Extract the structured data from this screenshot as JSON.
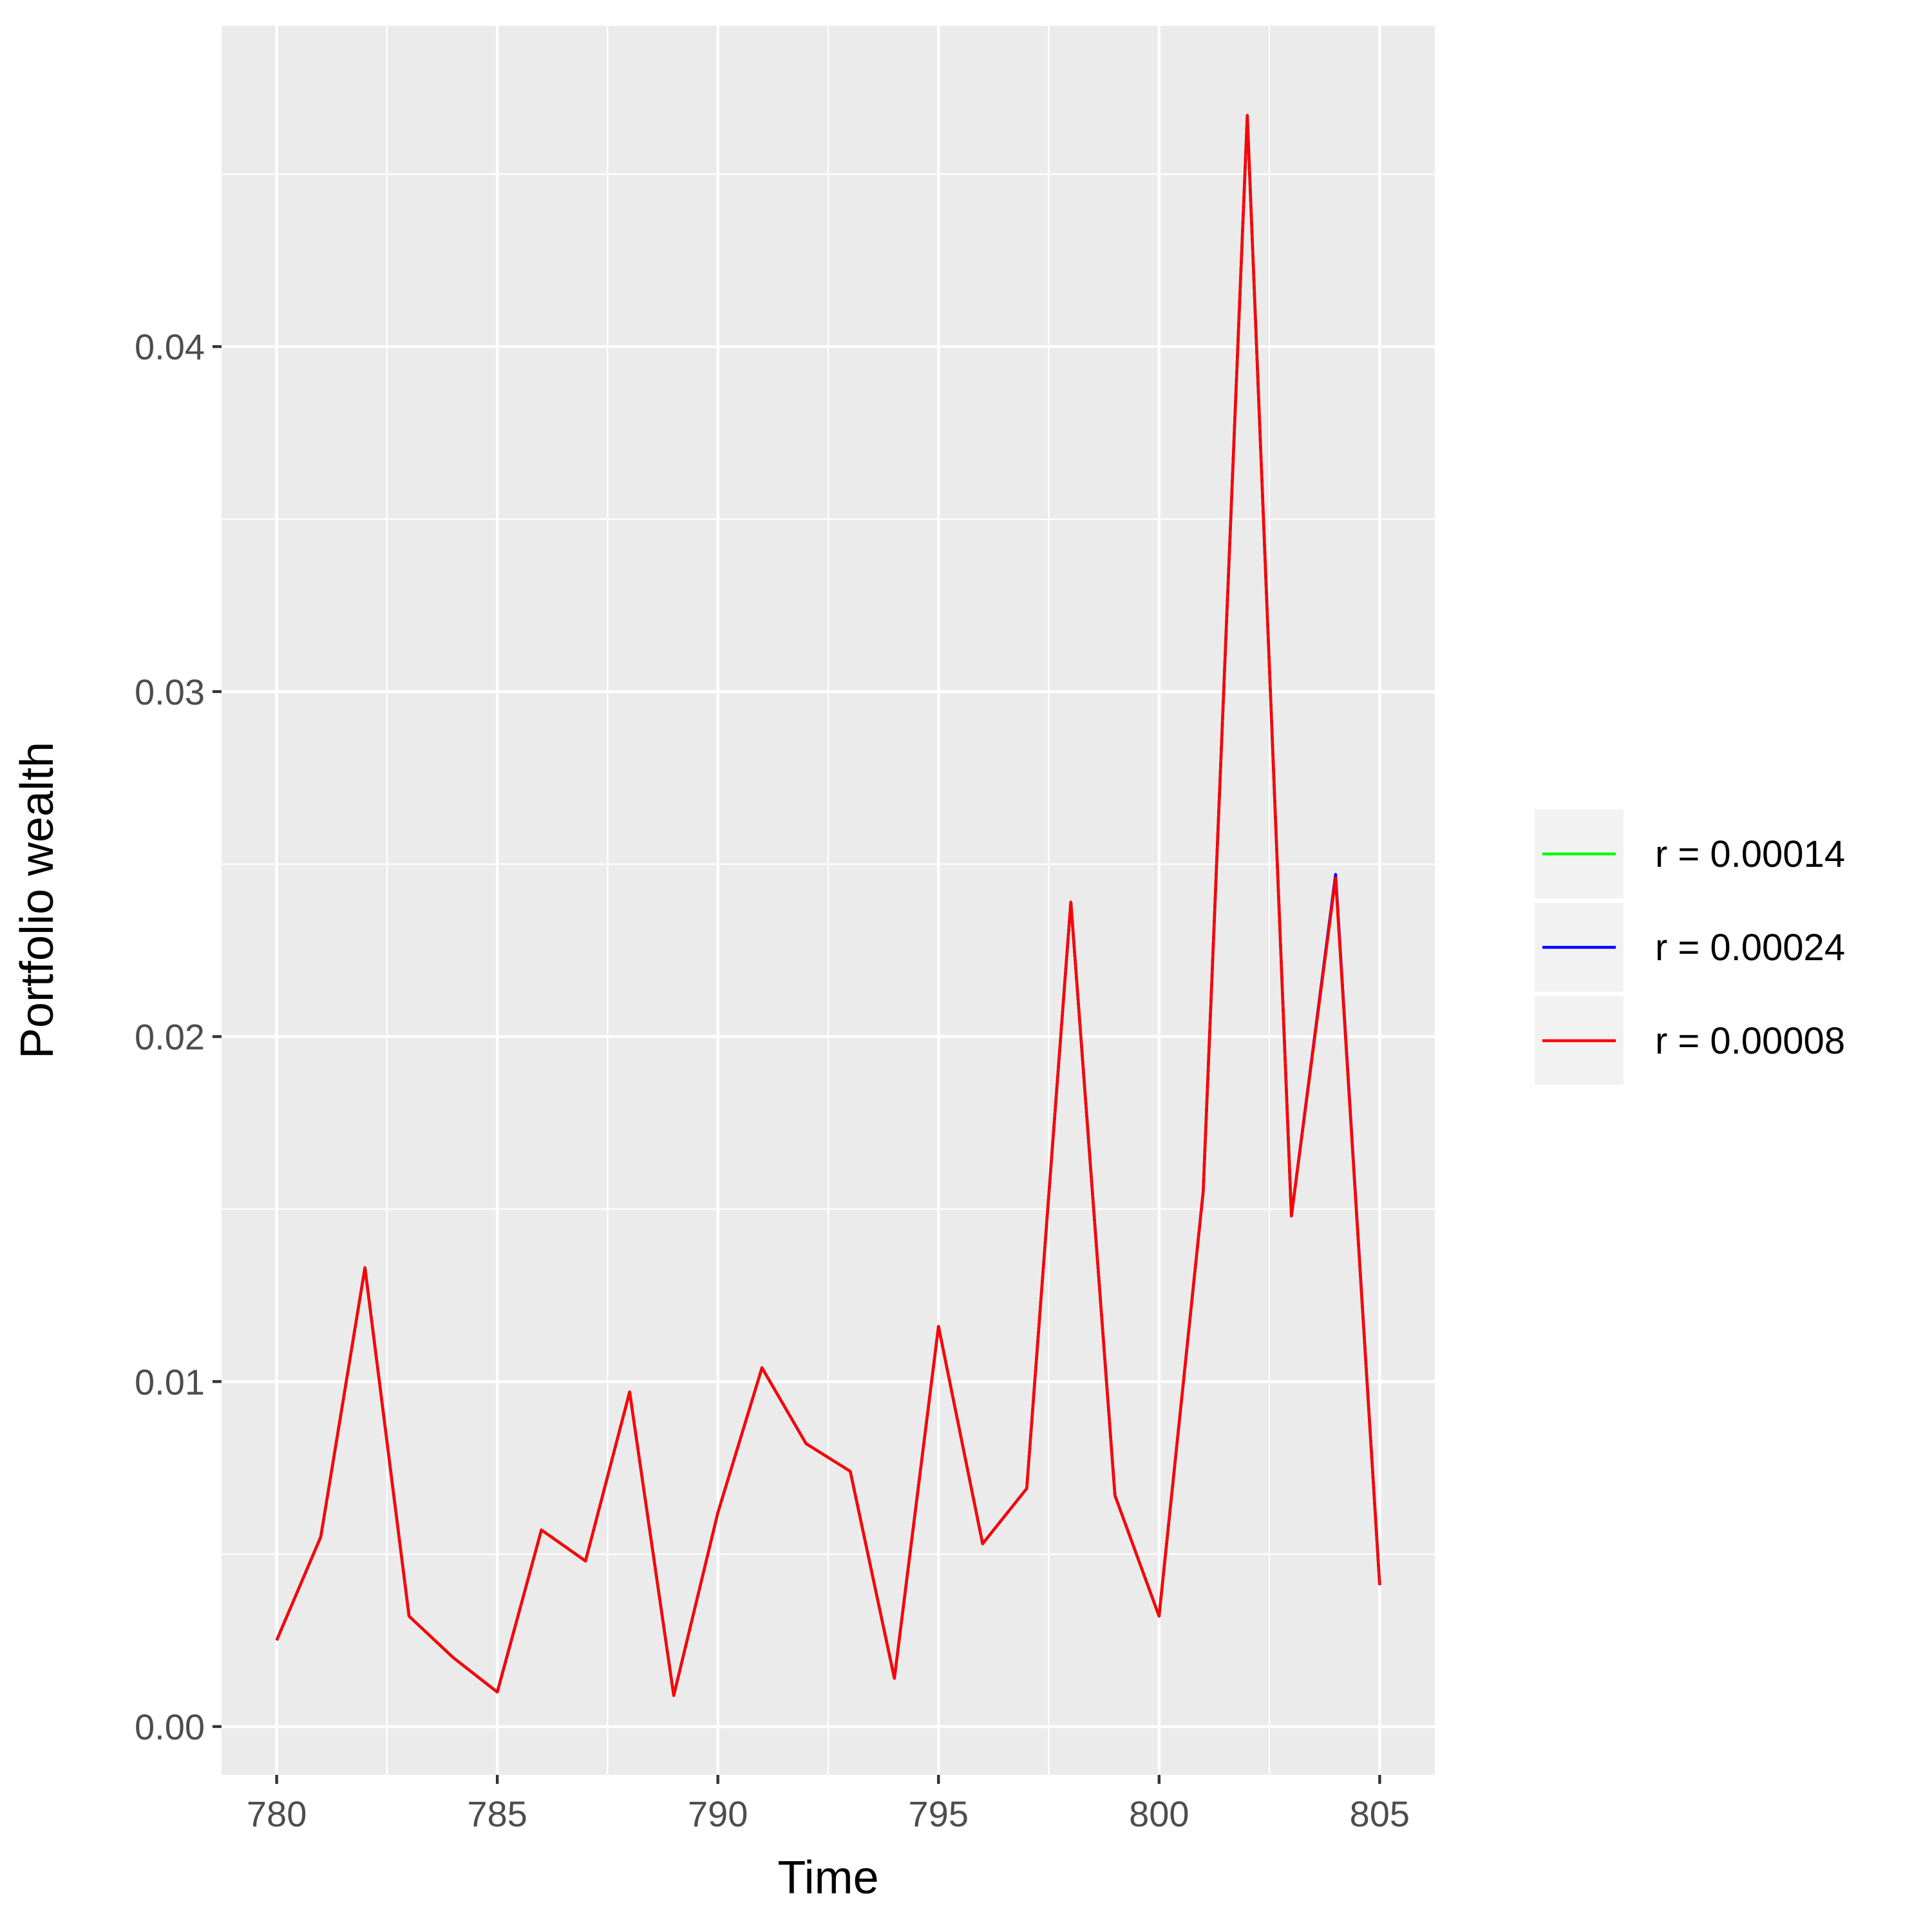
{
  "chart_data": {
    "type": "line",
    "xlabel": "Time",
    "ylabel": "Portfolio wealth",
    "xlim": [
      778.75,
      806.25
    ],
    "ylim": [
      -0.0014,
      0.0493
    ],
    "x_ticks": [
      780,
      785,
      790,
      795,
      800,
      805
    ],
    "x_tick_labels": [
      "780",
      "785",
      "790",
      "795",
      "800",
      "805"
    ],
    "y_ticks": [
      0.0,
      0.01,
      0.02,
      0.03,
      0.04
    ],
    "y_tick_labels": [
      "0.00",
      "0.01",
      "0.02",
      "0.03",
      "0.04"
    ],
    "x_minor_ticks": [
      782.5,
      787.5,
      792.5,
      797.5,
      802.5
    ],
    "y_minor_ticks": [
      0.005,
      0.015,
      0.025,
      0.035,
      0.045
    ],
    "grid": true,
    "background": "#ebebeb",
    "legend_position": "right",
    "x": [
      780,
      781,
      782,
      783,
      784,
      785,
      786,
      787,
      788,
      789,
      790,
      791,
      792,
      793,
      794,
      795,
      796,
      797,
      798,
      799,
      800,
      801,
      802,
      803,
      804,
      805
    ],
    "series": [
      {
        "name": "r = 0.00014",
        "color": "#00ff00",
        "values": [
          0.0025,
          0.0055,
          0.0133,
          0.0032,
          0.002,
          0.001,
          0.0057,
          0.0048,
          0.0097,
          0.0009,
          0.0062,
          0.0104,
          0.0082,
          0.0074,
          0.0014,
          0.0116,
          0.0053,
          0.0069,
          0.0239,
          0.0067,
          0.0032,
          0.0155,
          0.0467,
          0.0148,
          0.0246,
          0.0041
        ]
      },
      {
        "name": "r = 0.00024",
        "color": "#0000ff",
        "values": [
          0.0025,
          0.0055,
          0.0133,
          0.0032,
          0.002,
          0.001,
          0.0057,
          0.0048,
          0.0097,
          0.0009,
          0.0062,
          0.0104,
          0.0082,
          0.0074,
          0.0014,
          0.0116,
          0.0053,
          0.0069,
          0.0239,
          0.0067,
          0.0032,
          0.0155,
          0.0467,
          0.0148,
          0.0247,
          0.0041
        ]
      },
      {
        "name": "r = 0.00008",
        "color": "#ff0000",
        "values": [
          0.0025,
          0.0055,
          0.0133,
          0.0032,
          0.002,
          0.001,
          0.0057,
          0.0048,
          0.0097,
          0.0009,
          0.0062,
          0.0104,
          0.0082,
          0.0074,
          0.0014,
          0.0116,
          0.0053,
          0.0069,
          0.0239,
          0.0067,
          0.0032,
          0.0155,
          0.0467,
          0.0148,
          0.0246,
          0.0041
        ]
      }
    ]
  }
}
